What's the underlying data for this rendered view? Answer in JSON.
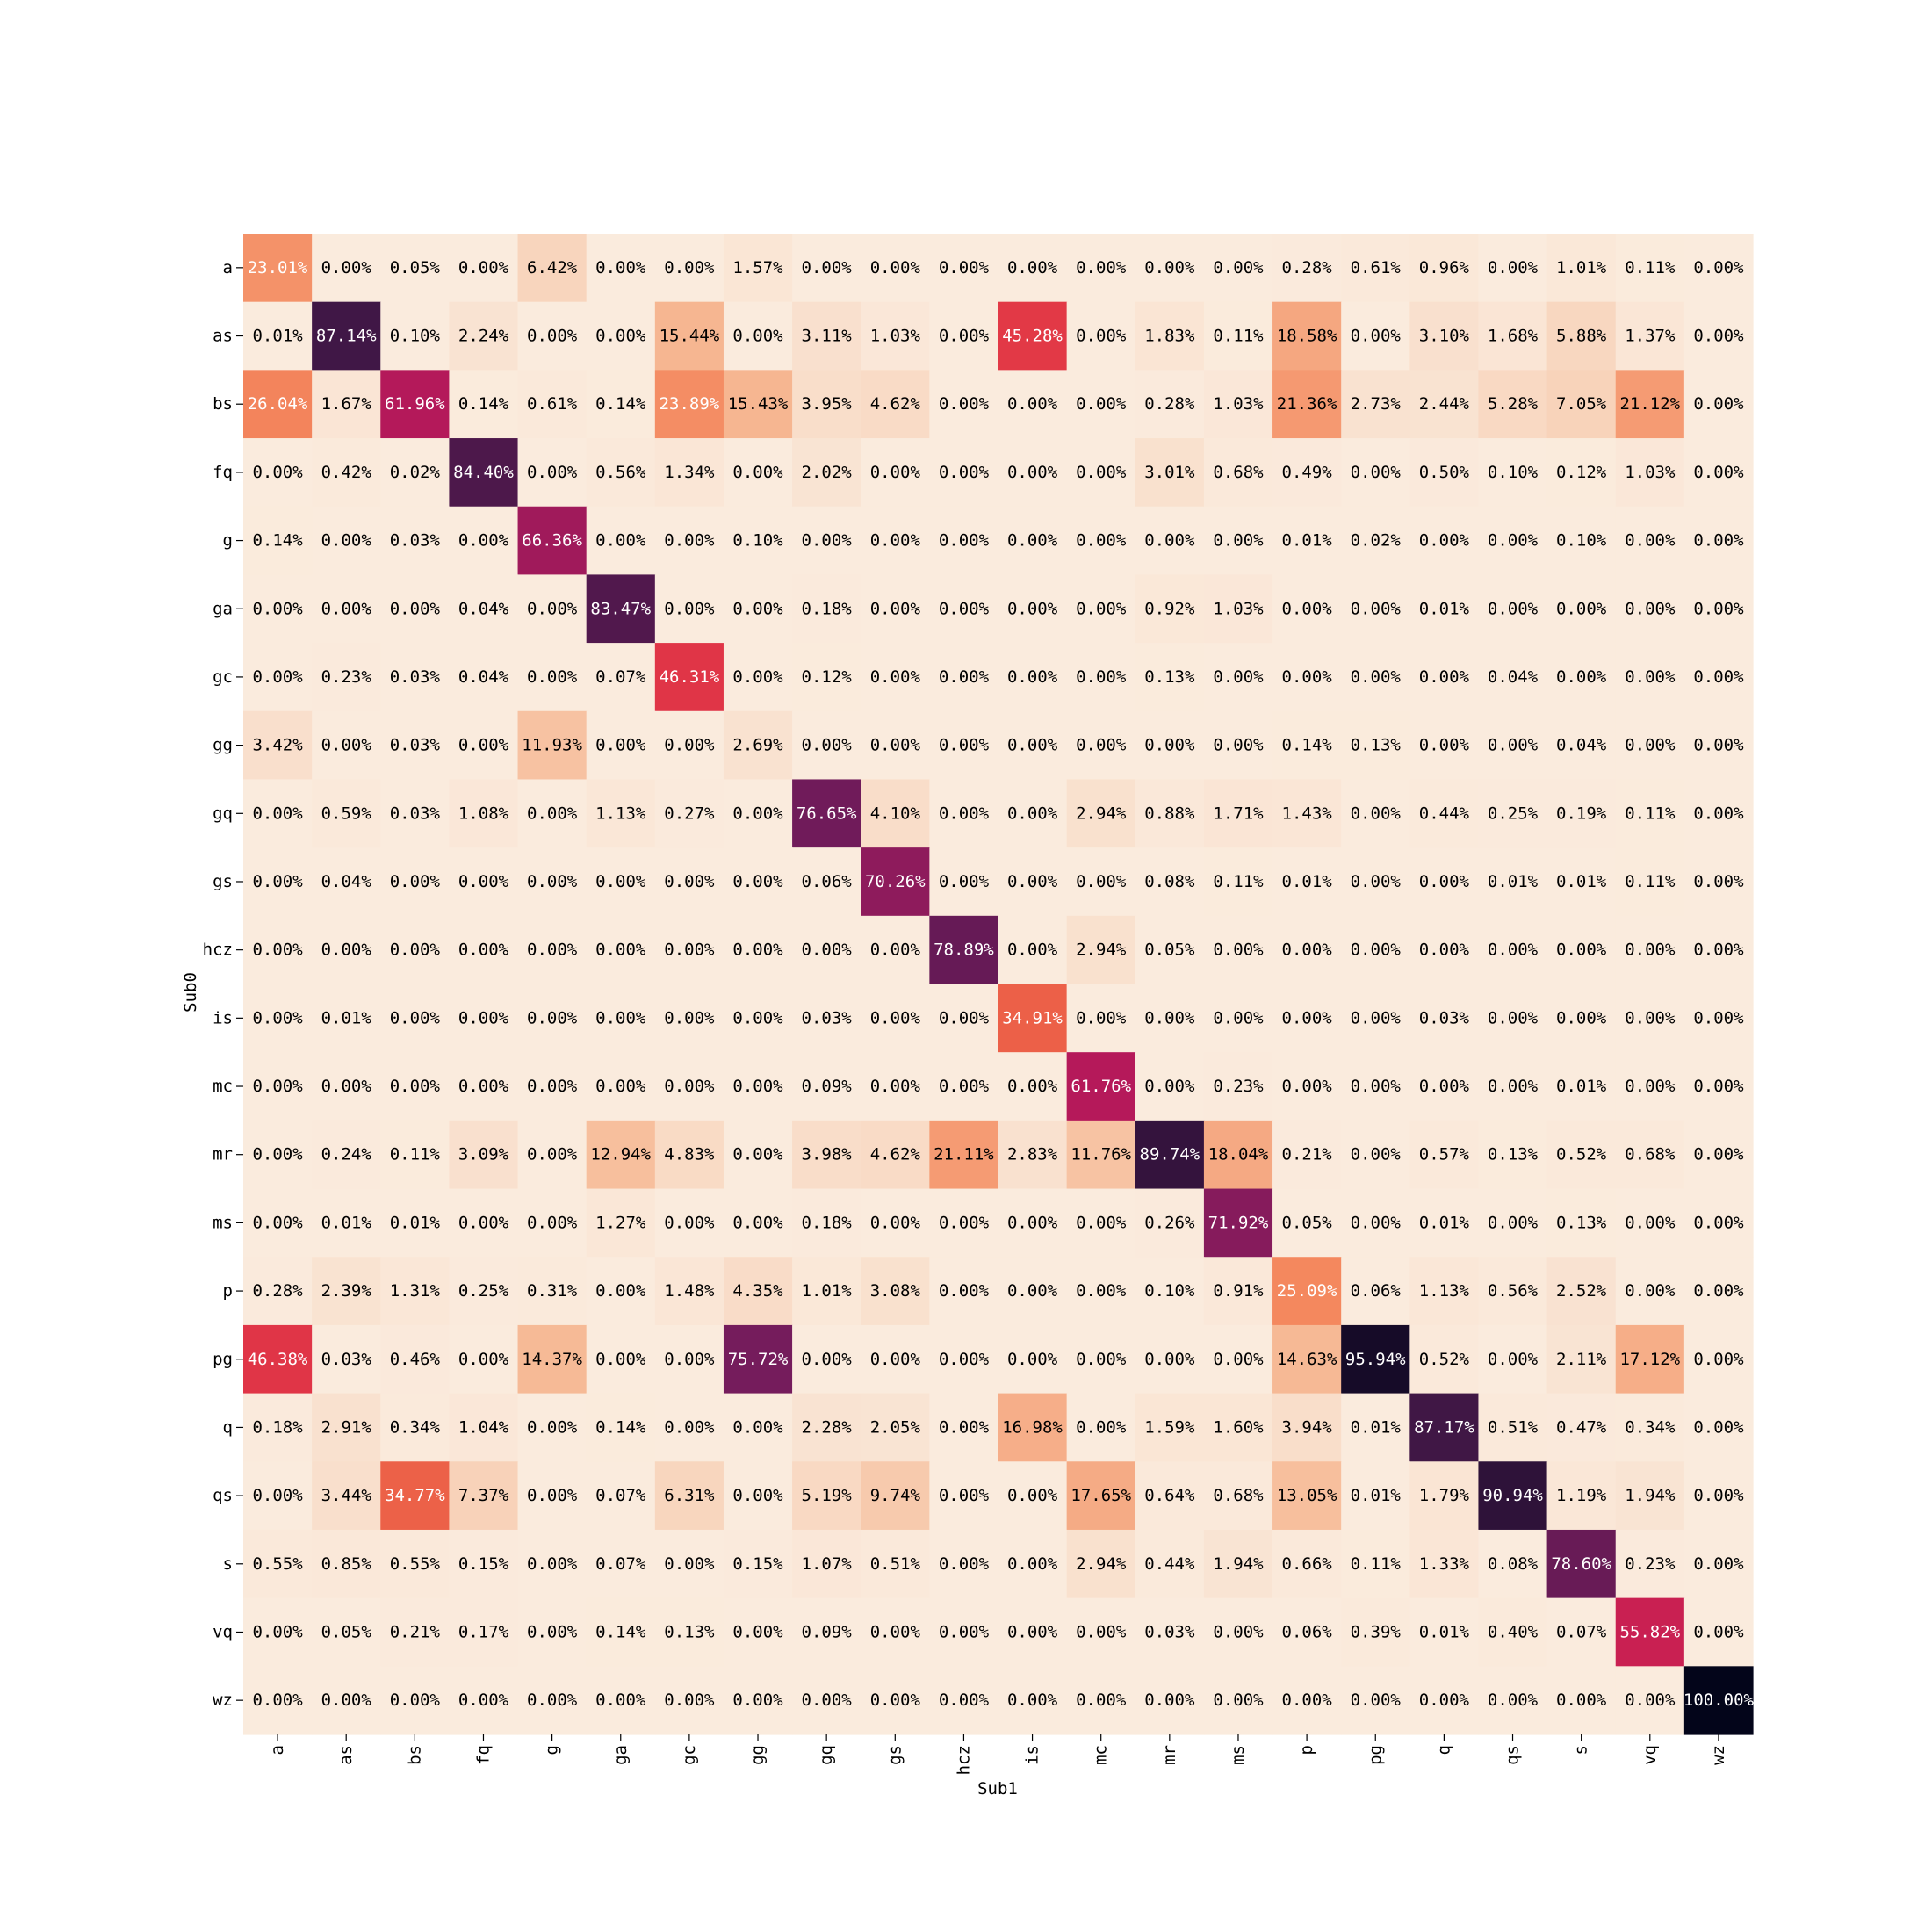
{
  "chart_data": {
    "type": "heatmap",
    "xlabel": "Sub1",
    "ylabel": "Sub0",
    "x_categories": [
      "a",
      "as",
      "bs",
      "fq",
      "g",
      "ga",
      "gc",
      "gg",
      "gq",
      "gs",
      "hcz",
      "is",
      "mc",
      "mr",
      "ms",
      "p",
      "pg",
      "q",
      "qs",
      "s",
      "vq",
      "wz"
    ],
    "y_categories": [
      "a",
      "as",
      "bs",
      "fq",
      "g",
      "ga",
      "gc",
      "gg",
      "gq",
      "gs",
      "hcz",
      "is",
      "mc",
      "mr",
      "ms",
      "p",
      "pg",
      "q",
      "qs",
      "s",
      "vq",
      "wz"
    ],
    "value_format": "percent, 2 decimals",
    "colormap": "rocket_r",
    "colorbar": false,
    "values": [
      [
        23.01,
        0.0,
        0.05,
        0.0,
        6.42,
        0.0,
        0.0,
        1.57,
        0.0,
        0.0,
        0.0,
        0.0,
        0.0,
        0.0,
        0.0,
        0.28,
        0.61,
        0.96,
        0.0,
        1.01,
        0.11,
        0.0
      ],
      [
        0.01,
        87.14,
        0.1,
        2.24,
        0.0,
        0.0,
        15.44,
        0.0,
        3.11,
        1.03,
        0.0,
        45.28,
        0.0,
        1.83,
        0.11,
        18.58,
        0.0,
        3.1,
        1.68,
        5.88,
        1.37,
        0.0
      ],
      [
        26.04,
        1.67,
        61.96,
        0.14,
        0.61,
        0.14,
        23.89,
        15.43,
        3.95,
        4.62,
        0.0,
        0.0,
        0.0,
        0.28,
        1.03,
        21.36,
        2.73,
        2.44,
        5.28,
        7.05,
        21.12,
        0.0
      ],
      [
        0.0,
        0.42,
        0.02,
        84.4,
        0.0,
        0.56,
        1.34,
        0.0,
        2.02,
        0.0,
        0.0,
        0.0,
        0.0,
        3.01,
        0.68,
        0.49,
        0.0,
        0.5,
        0.1,
        0.12,
        1.03,
        0.0
      ],
      [
        0.14,
        0.0,
        0.03,
        0.0,
        66.36,
        0.0,
        0.0,
        0.1,
        0.0,
        0.0,
        0.0,
        0.0,
        0.0,
        0.0,
        0.0,
        0.01,
        0.02,
        0.0,
        0.0,
        0.1,
        0.0,
        0.0
      ],
      [
        0.0,
        0.0,
        0.0,
        0.04,
        0.0,
        83.47,
        0.0,
        0.0,
        0.18,
        0.0,
        0.0,
        0.0,
        0.0,
        0.92,
        1.03,
        0.0,
        0.0,
        0.01,
        0.0,
        0.0,
        0.0,
        0.0
      ],
      [
        0.0,
        0.23,
        0.03,
        0.04,
        0.0,
        0.07,
        46.31,
        0.0,
        0.12,
        0.0,
        0.0,
        0.0,
        0.0,
        0.13,
        0.0,
        0.0,
        0.0,
        0.0,
        0.04,
        0.0,
        0.0,
        0.0
      ],
      [
        3.42,
        0.0,
        0.03,
        0.0,
        11.93,
        0.0,
        0.0,
        2.69,
        0.0,
        0.0,
        0.0,
        0.0,
        0.0,
        0.0,
        0.0,
        0.14,
        0.13,
        0.0,
        0.0,
        0.04,
        0.0,
        0.0
      ],
      [
        0.0,
        0.59,
        0.03,
        1.08,
        0.0,
        1.13,
        0.27,
        0.0,
        76.65,
        4.1,
        0.0,
        0.0,
        2.94,
        0.88,
        1.71,
        1.43,
        0.0,
        0.44,
        0.25,
        0.19,
        0.11,
        0.0
      ],
      [
        0.0,
        0.04,
        0.0,
        0.0,
        0.0,
        0.0,
        0.0,
        0.0,
        0.06,
        70.26,
        0.0,
        0.0,
        0.0,
        0.08,
        0.11,
        0.01,
        0.0,
        0.0,
        0.01,
        0.01,
        0.11,
        0.0
      ],
      [
        0.0,
        0.0,
        0.0,
        0.0,
        0.0,
        0.0,
        0.0,
        0.0,
        0.0,
        0.0,
        78.89,
        0.0,
        2.94,
        0.05,
        0.0,
        0.0,
        0.0,
        0.0,
        0.0,
        0.0,
        0.0,
        0.0
      ],
      [
        0.0,
        0.01,
        0.0,
        0.0,
        0.0,
        0.0,
        0.0,
        0.0,
        0.03,
        0.0,
        0.0,
        34.91,
        0.0,
        0.0,
        0.0,
        0.0,
        0.0,
        0.03,
        0.0,
        0.0,
        0.0,
        0.0
      ],
      [
        0.0,
        0.0,
        0.0,
        0.0,
        0.0,
        0.0,
        0.0,
        0.0,
        0.09,
        0.0,
        0.0,
        0.0,
        61.76,
        0.0,
        0.23,
        0.0,
        0.0,
        0.0,
        0.0,
        0.01,
        0.0,
        0.0
      ],
      [
        0.0,
        0.24,
        0.11,
        3.09,
        0.0,
        12.94,
        4.83,
        0.0,
        3.98,
        4.62,
        21.11,
        2.83,
        11.76,
        89.74,
        18.04,
        0.21,
        0.0,
        0.57,
        0.13,
        0.52,
        0.68,
        0.0
      ],
      [
        0.0,
        0.01,
        0.01,
        0.0,
        0.0,
        1.27,
        0.0,
        0.0,
        0.18,
        0.0,
        0.0,
        0.0,
        0.0,
        0.26,
        71.92,
        0.05,
        0.0,
        0.01,
        0.0,
        0.13,
        0.0,
        0.0
      ],
      [
        0.28,
        2.39,
        1.31,
        0.25,
        0.31,
        0.0,
        1.48,
        4.35,
        1.01,
        3.08,
        0.0,
        0.0,
        0.0,
        0.1,
        0.91,
        25.09,
        0.06,
        1.13,
        0.56,
        2.52,
        0.0,
        0.0
      ],
      [
        46.38,
        0.03,
        0.46,
        0.0,
        14.37,
        0.0,
        0.0,
        75.72,
        0.0,
        0.0,
        0.0,
        0.0,
        0.0,
        0.0,
        0.0,
        14.63,
        95.94,
        0.52,
        0.0,
        2.11,
        17.12,
        0.0
      ],
      [
        0.18,
        2.91,
        0.34,
        1.04,
        0.0,
        0.14,
        0.0,
        0.0,
        2.28,
        2.05,
        0.0,
        16.98,
        0.0,
        1.59,
        1.6,
        3.94,
        0.01,
        87.17,
        0.51,
        0.47,
        0.34,
        0.0
      ],
      [
        0.0,
        3.44,
        34.77,
        7.37,
        0.0,
        0.07,
        6.31,
        0.0,
        5.19,
        9.74,
        0.0,
        0.0,
        17.65,
        0.64,
        0.68,
        13.05,
        0.01,
        1.79,
        90.94,
        1.19,
        1.94,
        0.0
      ],
      [
        0.55,
        0.85,
        0.55,
        0.15,
        0.0,
        0.07,
        0.0,
        0.15,
        1.07,
        0.51,
        0.0,
        0.0,
        2.94,
        0.44,
        1.94,
        0.66,
        0.11,
        1.33,
        0.08,
        78.6,
        0.23,
        0.0
      ],
      [
        0.0,
        0.05,
        0.21,
        0.17,
        0.0,
        0.14,
        0.13,
        0.0,
        0.09,
        0.0,
        0.0,
        0.0,
        0.0,
        0.03,
        0.0,
        0.06,
        0.39,
        0.01,
        0.4,
        0.07,
        55.82,
        0.0
      ],
      [
        0.0,
        0.0,
        0.0,
        0.0,
        0.0,
        0.0,
        0.0,
        0.0,
        0.0,
        0.0,
        0.0,
        0.0,
        0.0,
        0.0,
        0.0,
        0.0,
        0.0,
        0.0,
        0.0,
        0.0,
        0.0,
        100.0
      ]
    ]
  }
}
